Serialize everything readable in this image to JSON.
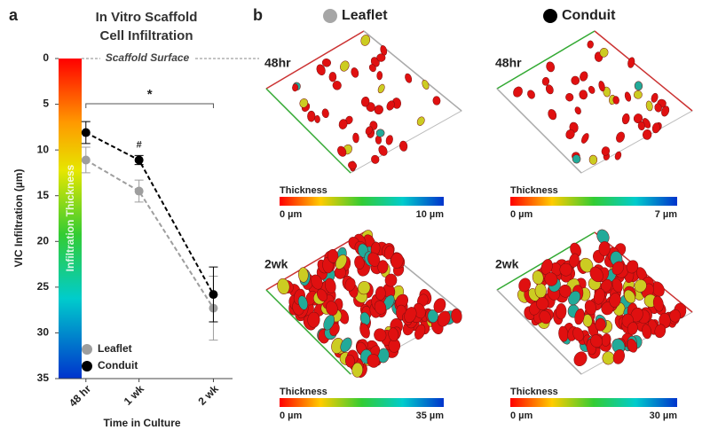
{
  "chart_data": {
    "type": "line",
    "panel_label": "a",
    "title": "In Vitro Scaffold Cell Infiltration",
    "x_label": "Time in Culture",
    "y_label": "VIC Infiltration (µm)",
    "colorbar_label": "Infiltration Thickness",
    "x": [
      2,
      7,
      14
    ],
    "xlim": [
      1.6,
      15.8
    ],
    "xticks": [
      {
        "value": 2,
        "label": "48 hr"
      },
      {
        "value": 7,
        "label": "1 wk"
      },
      {
        "value": 14,
        "label": "2 wk"
      }
    ],
    "ylim": [
      0,
      35
    ],
    "y_inverted": true,
    "yticks": [
      0,
      5,
      10,
      15,
      20,
      25,
      30,
      35
    ],
    "series": [
      {
        "name": "Leaflet",
        "color": "#9e9e9e",
        "values": [
          11.1,
          14.5,
          27.3
        ],
        "errors": [
          1.4,
          1.2,
          3.5
        ]
      },
      {
        "name": "Conduit",
        "color": "#000000",
        "values": [
          8.1,
          11.1,
          25.8
        ],
        "errors": [
          1.2,
          0.5,
          3.0
        ]
      }
    ],
    "legend": "bottom-left",
    "surface_label": "Scaffold Surface",
    "significance_all": "*",
    "significance_1wk": "#"
  },
  "panel_b": {
    "panel_label": "b",
    "legend": [
      {
        "name": "Leaflet",
        "color": "#a6a6a6"
      },
      {
        "name": "Conduit",
        "color": "#000000"
      }
    ],
    "images": [
      {
        "label": "48hr",
        "colorbar_title": "Thickness",
        "min_label": "0 µm",
        "max_label": "10 µm"
      },
      {
        "label": "48hr",
        "colorbar_title": "Thickness",
        "min_label": "0 µm",
        "max_label": "7 µm"
      },
      {
        "label": "2wk",
        "colorbar_title": "Thickness",
        "min_label": "0 µm",
        "max_label": "35 µm"
      },
      {
        "label": "2wk",
        "colorbar_title": "Thickness",
        "min_label": "0 µm",
        "max_label": "30 µm"
      }
    ]
  }
}
